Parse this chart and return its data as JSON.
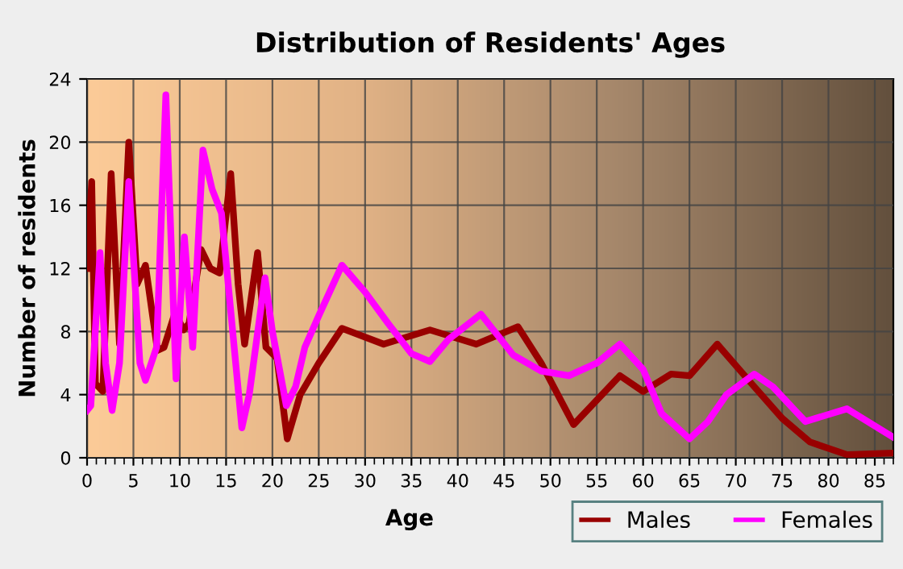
{
  "chart_data": {
    "type": "line",
    "title": "Distribution of Residents' Ages",
    "xlabel": "Age",
    "ylabel": "Number of residents",
    "xlim": [
      0,
      87
    ],
    "xticks": [
      0,
      5,
      10,
      15,
      20,
      25,
      30,
      35,
      40,
      45,
      50,
      55,
      60,
      65,
      70,
      75,
      80,
      85
    ],
    "ylim": [
      0,
      24
    ],
    "yticks": [
      0,
      4,
      8,
      12,
      16,
      20,
      24
    ],
    "grid": true,
    "legend": "bottom right",
    "marker": "none",
    "line_style": "solid",
    "series": [
      {
        "name": "Males",
        "color": "#990000",
        "x": [
          0,
          0.5,
          0.9,
          1.7,
          2.6,
          3.5,
          4.5,
          5.4,
          6.3,
          7.6,
          8.3,
          9.5,
          10.4,
          11,
          12.3,
          13.3,
          14.3,
          15.5,
          16.3,
          17,
          18.4,
          19.3,
          20.5,
          21.6,
          23,
          25,
          27.5,
          32,
          37,
          42,
          46.5,
          49,
          52.5,
          57.5,
          60,
          63,
          65,
          68,
          72,
          75,
          78,
          82,
          87
        ],
        "values": [
          12,
          17.5,
          4.7,
          4.2,
          18,
          7.2,
          20,
          11,
          12.2,
          6.8,
          7,
          9.2,
          8.1,
          8.5,
          13.2,
          12,
          11.7,
          18,
          11,
          7.2,
          13,
          7,
          6.3,
          1.2,
          4,
          6,
          8.2,
          7.2,
          8.1,
          7.2,
          8.3,
          6,
          2.1,
          5.2,
          4.2,
          5.3,
          5.2,
          7.2,
          4.5,
          2.5,
          1,
          0.2,
          0.3
        ]
      },
      {
        "name": "Females",
        "color": "#ff00ff",
        "x": [
          0,
          0.4,
          1.4,
          2,
          2.7,
          3.5,
          4.5,
          5.7,
          6.3,
          7.5,
          8.5,
          9.6,
          10.5,
          11.4,
          12.5,
          13.5,
          14.5,
          16.7,
          17.5,
          19.2,
          20,
          21.5,
          22.5,
          23.5,
          25,
          27.5,
          30,
          32.5,
          35,
          37,
          39,
          42.5,
          46,
          49,
          52,
          55,
          57.5,
          60,
          62,
          65,
          67,
          69,
          72,
          74,
          77.5,
          82,
          87
        ],
        "values": [
          3,
          3.3,
          13,
          6,
          3,
          6,
          17.5,
          6,
          4.9,
          7,
          23,
          5,
          14,
          7,
          19.5,
          17,
          15.5,
          1.9,
          4,
          11.4,
          8,
          3.3,
          4.5,
          7,
          9,
          12.2,
          10.5,
          8.5,
          6.6,
          6.1,
          7.5,
          9.1,
          6.5,
          5.5,
          5.2,
          6,
          7.2,
          5.6,
          2.8,
          1.2,
          2.3,
          4,
          5.3,
          4.5,
          2.3,
          3.1,
          1.3
        ]
      }
    ]
  }
}
